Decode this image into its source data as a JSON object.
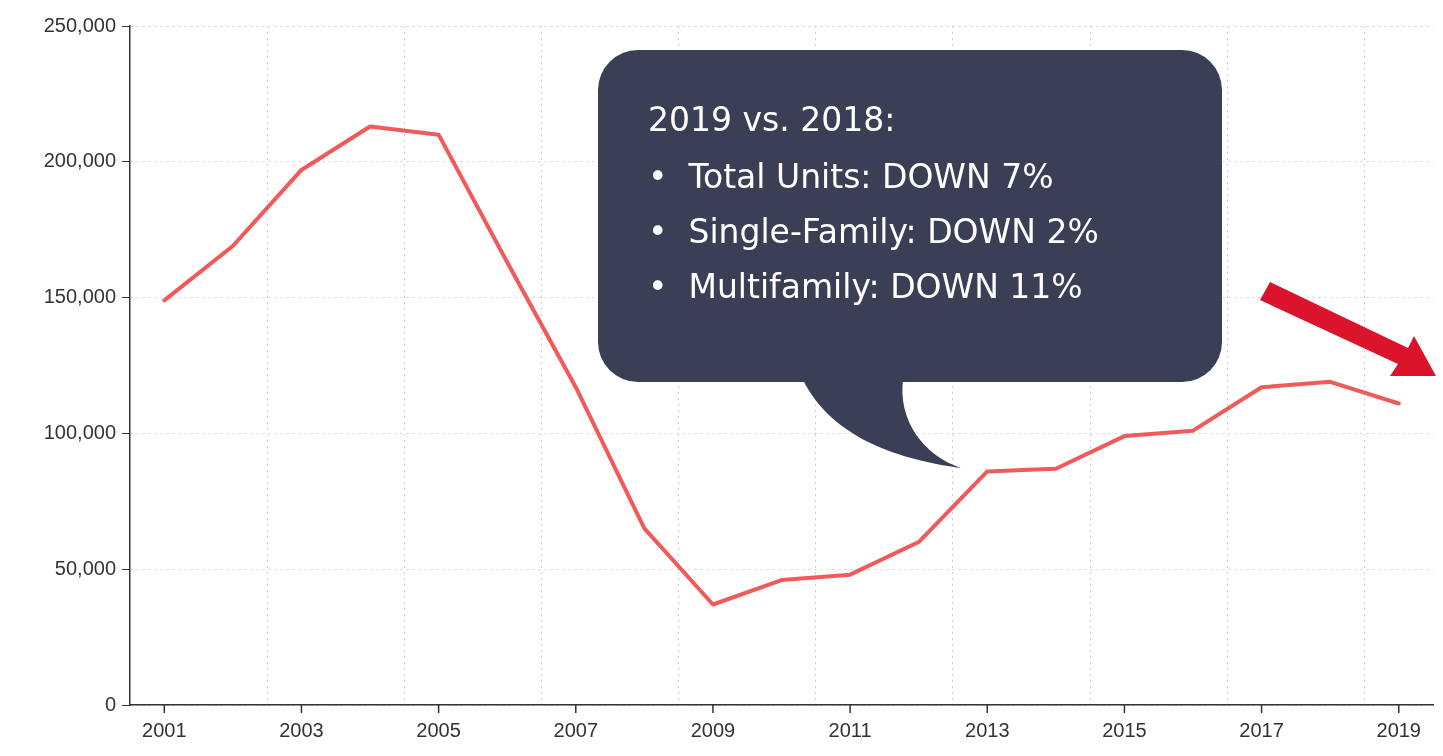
{
  "chart_data": {
    "type": "line",
    "categories": [
      "2001",
      null,
      "2003",
      null,
      "2005",
      null,
      "2007",
      null,
      "2009",
      null,
      "2011",
      null,
      "2013",
      null,
      "2015",
      null,
      "2017",
      null,
      "2019"
    ],
    "series": [
      {
        "color": "#f05a5a",
        "values": [
          149000,
          169000,
          197000,
          213000,
          210000,
          163000,
          117000,
          65000,
          37000,
          46000,
          48000,
          60000,
          86000,
          87000,
          99000,
          101000,
          117000,
          119000,
          111000
        ]
      }
    ],
    "ylim": [
      0,
      250000
    ],
    "yticks": [
      {
        "value": 0,
        "label": "0"
      },
      {
        "value": 50000,
        "label": "50,000"
      },
      {
        "value": 100000,
        "label": "100,000"
      },
      {
        "value": 150000,
        "label": "150,000"
      },
      {
        "value": 200000,
        "label": "200,000"
      },
      {
        "value": 250000,
        "label": "250,000"
      }
    ],
    "grid": true,
    "legend": false,
    "marker": "none",
    "line_style": "solid",
    "annotations": [
      "2019 vs. 2018:",
      "•  Total Units: DOWN 7%",
      "•  Single-Family: DOWN 2%",
      "•  Multifamily: DOWN 11%"
    ]
  }
}
